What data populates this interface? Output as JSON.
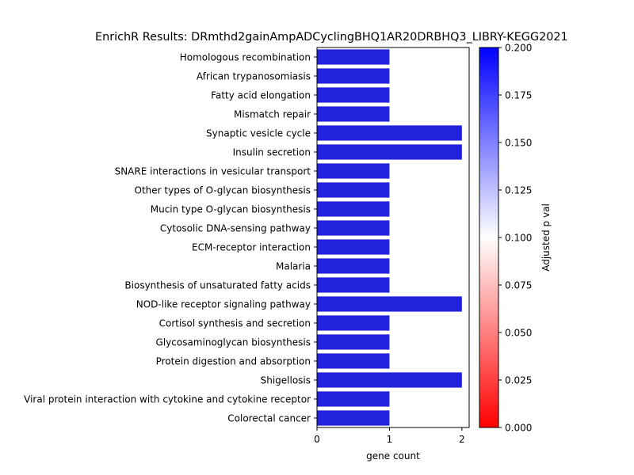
{
  "chart_data": {
    "type": "bar",
    "orientation": "horizontal",
    "title": "EnrichR Results: DRmthd2gainAmpADCyclingBHQ1AR20DRBHQ3_LIBRY-KEGG2021",
    "xlabel": "gene count",
    "ylabel": "",
    "xlim": [
      0,
      2.1
    ],
    "xticks": [
      0,
      1,
      2
    ],
    "grid": false,
    "categories": [
      "Homologous recombination",
      "African trypanosomiasis",
      "Fatty acid elongation",
      "Mismatch repair",
      "Synaptic vesicle cycle",
      "Insulin secretion",
      "SNARE interactions in vesicular transport",
      "Other types of O-glycan biosynthesis",
      "Mucin type O-glycan biosynthesis",
      "Cytosolic DNA-sensing pathway",
      "ECM-receptor interaction",
      "Malaria",
      "Biosynthesis of unsaturated fatty acids",
      "NOD-like receptor signaling pathway",
      "Cortisol synthesis and secretion",
      "Glycosaminoglycan biosynthesis",
      "Protein digestion and absorption",
      "Shigellosis",
      "Viral protein interaction with cytokine and cytokine receptor",
      "Colorectal cancer"
    ],
    "values": [
      1,
      1,
      1,
      1,
      2,
      2,
      1,
      1,
      1,
      1,
      1,
      1,
      1,
      2,
      1,
      1,
      1,
      2,
      1,
      1
    ],
    "bar_color": "#2222dd",
    "colorbar": {
      "label": "Adjusted p val",
      "range": [
        0,
        0.2
      ],
      "ticks": [
        "0.000",
        "0.025",
        "0.050",
        "0.075",
        "0.100",
        "0.125",
        "0.150",
        "0.175",
        "0.200"
      ],
      "colors": [
        "#ff0000",
        "#ffffff",
        "#0000ff"
      ]
    }
  }
}
